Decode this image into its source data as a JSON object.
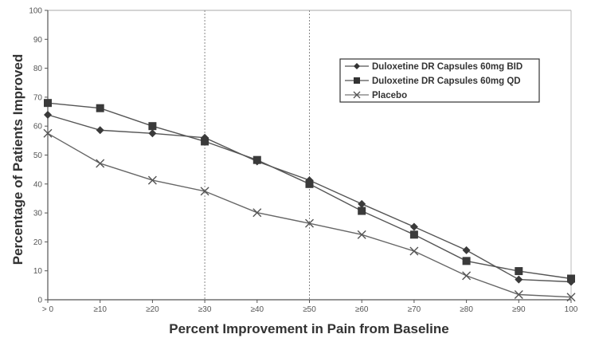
{
  "chart_data": {
    "type": "line",
    "title": "",
    "xlabel": "Percent Improvement in Pain from Baseline",
    "ylabel": "Percentage of Patients Improved",
    "ylim": [
      0,
      100
    ],
    "yticks": [
      "0",
      "10",
      "20",
      "30",
      "40",
      "50",
      "60",
      "70",
      "80",
      "90",
      "100"
    ],
    "categories": [
      "> 0",
      "≥10",
      "≥20",
      "≥30",
      "≥40",
      "≥50",
      "≥60",
      "≥70",
      "≥80",
      "≥90",
      "100"
    ],
    "reference_lines_at": [
      "≥30",
      "≥50"
    ],
    "grid": false,
    "legend_position": "top-right",
    "series": [
      {
        "name": "Duloxetine DR Capsules 60mg BID",
        "marker": "diamond",
        "color": "#3a3a3a",
        "values": [
          63.9,
          58.6,
          57.5,
          56.0,
          47.8,
          41.3,
          33.1,
          25.2,
          17.1,
          7.0,
          6.2
        ]
      },
      {
        "name": "Duloxetine DR Capsules 60mg QD",
        "marker": "square",
        "color": "#3a3a3a",
        "values": [
          68.0,
          66.2,
          60.0,
          54.7,
          48.3,
          40.0,
          30.7,
          22.5,
          13.4,
          9.9,
          7.3
        ]
      },
      {
        "name": "Placebo",
        "marker": "x",
        "color": "#555555",
        "values": [
          57.5,
          47.1,
          41.3,
          37.5,
          30.1,
          26.4,
          22.5,
          16.8,
          8.3,
          1.8,
          0.9
        ]
      }
    ]
  }
}
